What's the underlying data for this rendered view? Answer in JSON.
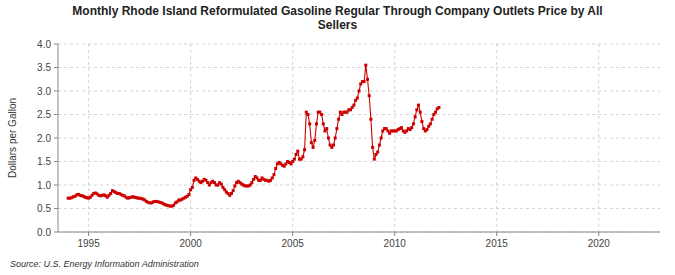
{
  "chart_data": {
    "type": "line",
    "title": "Monthly Rhode Island Reformulated Gasoline Regular Through Company Outlets Price by All\nSellers",
    "y_label": "Dollars per Gallon",
    "annotations": [
      "Source: U.S. Energy Information Administration"
    ],
    "color": "#CC0000",
    "marker": "square",
    "line_style": "solid",
    "grid": true,
    "xlim": [
      1993.5,
      2023.0
    ],
    "ylim": [
      0.0,
      4.0
    ],
    "xticks": [
      1995,
      2000,
      2005,
      2010,
      2015,
      2020
    ],
    "yticks": [
      {
        "value": 0.0,
        "label": "0.0"
      },
      0.5,
      {
        "value": 1.0,
        "label": "1.0"
      },
      1.5,
      {
        "value": 2.0,
        "label": "2.0"
      },
      2.5,
      {
        "value": 3.0,
        "label": "3.0"
      },
      3.5,
      {
        "value": 4.0,
        "label": "4.0"
      }
    ],
    "x": [
      1994.0,
      1994.083,
      1994.167,
      1994.25,
      1994.333,
      1994.417,
      1994.5,
      1994.583,
      1994.667,
      1994.75,
      1994.833,
      1994.917,
      1995.0,
      1995.083,
      1995.167,
      1995.25,
      1995.333,
      1995.417,
      1995.5,
      1995.583,
      1995.667,
      1995.75,
      1995.833,
      1995.917,
      1996.0,
      1996.083,
      1996.167,
      1996.25,
      1996.333,
      1996.417,
      1996.5,
      1996.583,
      1996.667,
      1996.75,
      1996.833,
      1996.917,
      1997.0,
      1997.083,
      1997.167,
      1997.25,
      1997.333,
      1997.417,
      1997.5,
      1997.583,
      1997.667,
      1997.75,
      1997.833,
      1997.917,
      1998.0,
      1998.083,
      1998.167,
      1998.25,
      1998.333,
      1998.417,
      1998.5,
      1998.583,
      1998.667,
      1998.75,
      1998.833,
      1998.917,
      1999.0,
      1999.083,
      1999.167,
      1999.25,
      1999.333,
      1999.417,
      1999.5,
      1999.583,
      1999.667,
      1999.75,
      1999.833,
      1999.917,
      2000.0,
      2000.083,
      2000.167,
      2000.25,
      2000.333,
      2000.417,
      2000.5,
      2000.583,
      2000.667,
      2000.75,
      2000.833,
      2000.917,
      2001.0,
      2001.083,
      2001.167,
      2001.25,
      2001.333,
      2001.417,
      2001.5,
      2001.583,
      2001.667,
      2001.75,
      2001.833,
      2001.917,
      2002.0,
      2002.083,
      2002.167,
      2002.25,
      2002.333,
      2002.417,
      2002.5,
      2002.583,
      2002.667,
      2002.75,
      2002.833,
      2002.917,
      2003.0,
      2003.083,
      2003.167,
      2003.25,
      2003.333,
      2003.417,
      2003.5,
      2003.583,
      2003.667,
      2003.75,
      2003.833,
      2003.917,
      2004.0,
      2004.083,
      2004.167,
      2004.25,
      2004.333,
      2004.417,
      2004.5,
      2004.583,
      2004.667,
      2004.75,
      2004.833,
      2004.917,
      2005.0,
      2005.083,
      2005.167,
      2005.25,
      2005.333,
      2005.417,
      2005.5,
      2005.583,
      2005.667,
      2005.75,
      2005.833,
      2005.917,
      2006.0,
      2006.083,
      2006.167,
      2006.25,
      2006.333,
      2006.417,
      2006.5,
      2006.583,
      2006.667,
      2006.75,
      2006.833,
      2006.917,
      2007.0,
      2007.083,
      2007.167,
      2007.25,
      2007.333,
      2007.417,
      2007.5,
      2007.583,
      2007.667,
      2007.75,
      2007.833,
      2007.917,
      2008.0,
      2008.083,
      2008.167,
      2008.25,
      2008.333,
      2008.417,
      2008.5,
      2008.583,
      2008.667,
      2008.75,
      2008.833,
      2008.917,
      2009.0,
      2009.083,
      2009.167,
      2009.25,
      2009.333,
      2009.417,
      2009.5,
      2009.583,
      2009.667,
      2009.75,
      2009.833,
      2009.917,
      2010.0,
      2010.083,
      2010.167,
      2010.25,
      2010.333,
      2010.417,
      2010.5,
      2010.583,
      2010.667,
      2010.75,
      2010.833,
      2010.917,
      2011.0,
      2011.083,
      2011.167,
      2011.25,
      2011.333,
      2011.417,
      2011.5,
      2011.583,
      2011.667,
      2011.75,
      2011.833,
      2011.917,
      2012.0,
      2012.083,
      2012.167
    ],
    "values": [
      0.72,
      0.72,
      0.73,
      0.75,
      0.76,
      0.79,
      0.8,
      0.78,
      0.77,
      0.76,
      0.74,
      0.73,
      0.72,
      0.74,
      0.78,
      0.82,
      0.83,
      0.81,
      0.78,
      0.77,
      0.78,
      0.79,
      0.77,
      0.74,
      0.78,
      0.82,
      0.88,
      0.86,
      0.84,
      0.82,
      0.82,
      0.8,
      0.78,
      0.77,
      0.74,
      0.72,
      0.73,
      0.74,
      0.75,
      0.74,
      0.73,
      0.72,
      0.72,
      0.71,
      0.7,
      0.68,
      0.65,
      0.63,
      0.62,
      0.62,
      0.64,
      0.65,
      0.65,
      0.64,
      0.63,
      0.62,
      0.6,
      0.58,
      0.57,
      0.56,
      0.55,
      0.55,
      0.57,
      0.62,
      0.64,
      0.68,
      0.68,
      0.7,
      0.72,
      0.74,
      0.76,
      0.8,
      0.9,
      0.95,
      1.1,
      1.15,
      1.12,
      1.08,
      1.05,
      1.08,
      1.12,
      1.1,
      1.05,
      1.0,
      1.05,
      1.08,
      1.05,
      1.0,
      1.0,
      1.05,
      1.02,
      0.95,
      0.9,
      0.85,
      0.82,
      0.78,
      0.82,
      0.88,
      0.98,
      1.05,
      1.08,
      1.05,
      1.02,
      1.0,
      0.98,
      0.98,
      0.98,
      1.0,
      1.05,
      1.12,
      1.18,
      1.15,
      1.1,
      1.1,
      1.15,
      1.12,
      1.1,
      1.1,
      1.08,
      1.1,
      1.15,
      1.22,
      1.35,
      1.45,
      1.48,
      1.45,
      1.42,
      1.4,
      1.45,
      1.5,
      1.48,
      1.45,
      1.5,
      1.55,
      1.65,
      1.72,
      1.55,
      1.55,
      1.6,
      1.75,
      2.55,
      2.5,
      2.3,
      1.9,
      1.8,
      1.95,
      2.3,
      2.55,
      2.55,
      2.5,
      2.3,
      2.15,
      2.2,
      2.0,
      1.85,
      1.8,
      1.85,
      2.0,
      2.2,
      2.4,
      2.55,
      2.5,
      2.55,
      2.55,
      2.55,
      2.6,
      2.6,
      2.65,
      2.7,
      2.8,
      2.85,
      3.0,
      3.15,
      3.2,
      3.2,
      3.55,
      3.25,
      2.9,
      2.4,
      1.8,
      1.55,
      1.65,
      1.7,
      1.85,
      2.0,
      2.15,
      2.2,
      2.2,
      2.15,
      2.1,
      2.15,
      2.15,
      2.15,
      2.15,
      2.18,
      2.2,
      2.22,
      2.15,
      2.12,
      2.15,
      2.2,
      2.18,
      2.22,
      2.3,
      2.45,
      2.6,
      2.7,
      2.55,
      2.35,
      2.2,
      2.15,
      2.18,
      2.25,
      2.3,
      2.4,
      2.5,
      2.55,
      2.62,
      2.65
    ]
  }
}
